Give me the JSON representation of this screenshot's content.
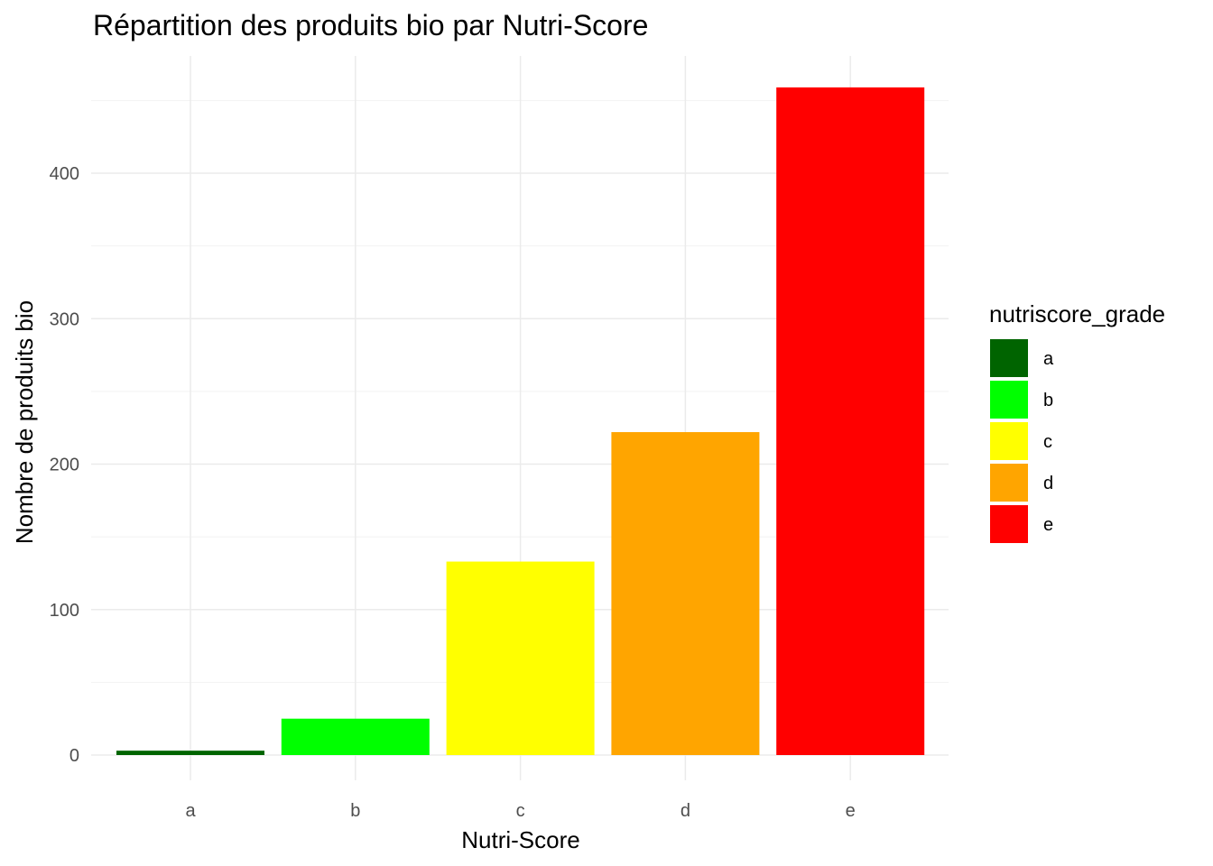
{
  "chart_data": {
    "type": "bar",
    "title": "Répartition des produits bio par Nutri-Score",
    "xlabel": "Nutri-Score",
    "ylabel": "Nombre de produits bio",
    "categories": [
      "a",
      "b",
      "c",
      "d",
      "e"
    ],
    "values": [
      3,
      25,
      133,
      222,
      459
    ],
    "colors": [
      "#006400",
      "#00ff00",
      "#ffff00",
      "#ffa500",
      "#ff0000"
    ],
    "ylim": [
      0,
      480
    ],
    "yticks": [
      0,
      100,
      200,
      300,
      400
    ],
    "grid": true,
    "legend": {
      "title": "nutriscore_grade",
      "placement": "right",
      "entries": [
        "a",
        "b",
        "c",
        "d",
        "e"
      ]
    }
  }
}
